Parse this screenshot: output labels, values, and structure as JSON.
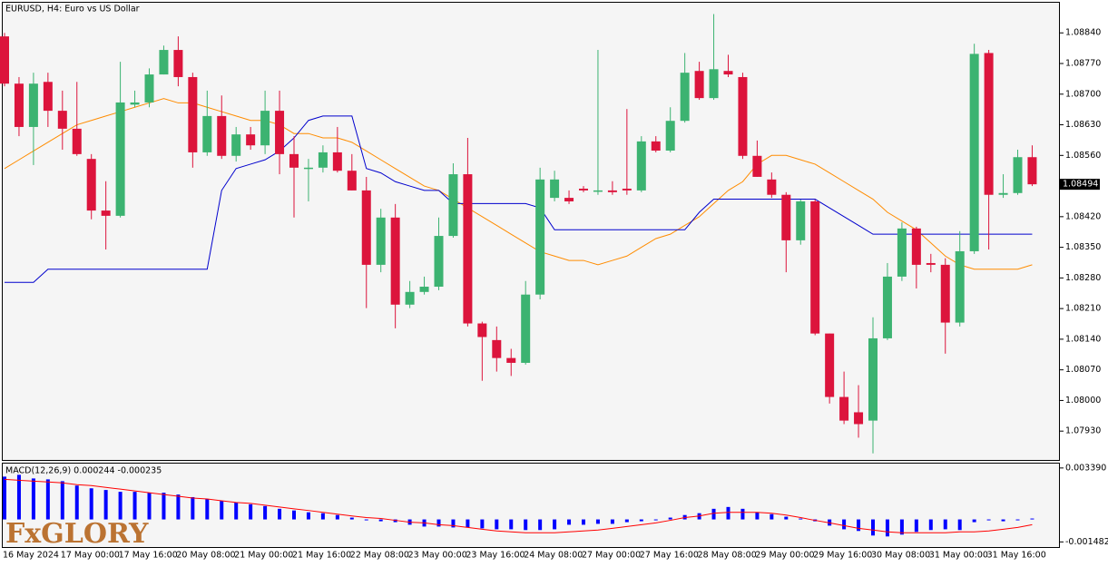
{
  "chart_data": [
    {
      "type": "candlestick",
      "title": "EURUSD, H4:  Euro vs US Dollar",
      "watermark": "FxGLORY",
      "categories": [
        "16 May 2024",
        null,
        null,
        null,
        "17 May 00:00",
        null,
        null,
        null,
        "17 May 16:00",
        null,
        null,
        null,
        "20 May 08:00",
        null,
        null,
        null,
        "21 May 00:00",
        null,
        null,
        null,
        "21 May 16:00",
        null,
        null,
        null,
        "22 May 08:00",
        null,
        null,
        null,
        "23 May 00:00",
        null,
        null,
        null,
        "23 May 16:00",
        null,
        null,
        null,
        "24 May 08:00",
        null,
        null,
        null,
        "27 May 00:00",
        null,
        null,
        null,
        "27 May 16:00",
        null,
        null,
        null,
        "28 May 08:00",
        null,
        null,
        null,
        "29 May 00:00",
        null,
        null,
        null,
        "29 May 16:00",
        null,
        null,
        null,
        "30 May 08:00",
        null,
        null,
        null,
        "31 May 00:00",
        null,
        null,
        null,
        "31 May 16:00",
        null,
        null,
        null
      ],
      "open": [
        1.08832,
        1.08724,
        1.08625,
        1.08728,
        1.08662,
        1.08621,
        1.08552,
        1.08434,
        1.08422,
        1.08676,
        1.08681,
        1.08745,
        1.08801,
        1.08739,
        1.08567,
        1.0865,
        1.08559,
        1.08608,
        1.08583,
        1.08662,
        1.08563,
        1.08532,
        1.08532,
        1.08567,
        1.08525,
        1.0848,
        1.0831,
        1.08418,
        1.08219,
        1.08248,
        1.0826,
        1.08376,
        1.08517,
        1.08176,
        1.08138,
        1.08097,
        1.08086,
        1.08242,
        1.08463,
        1.08463,
        1.08484,
        1.0848,
        1.0848,
        1.08484,
        1.0848,
        1.08592,
        1.08571,
        1.08639,
        1.08753,
        1.08691,
        1.08753,
        1.08739,
        1.08559,
        1.08505,
        1.0847,
        1.08366,
        1.08455,
        1.08153,
        1.08008,
        1.07973,
        1.07954,
        1.08142,
        1.08283,
        1.08393,
        1.08314,
        1.0831,
        1.08178,
        1.08341,
        1.08794,
        1.0847,
        1.08474,
        1.08556
      ],
      "high": [
        1.0884,
        1.08739,
        1.08749,
        1.08749,
        1.08708,
        1.08728,
        1.08563,
        1.08501,
        1.08774,
        1.08708,
        1.08759,
        1.08811,
        1.08832,
        1.08749,
        1.08708,
        1.08697,
        1.08625,
        1.08625,
        1.08708,
        1.08708,
        1.08604,
        1.08552,
        1.08583,
        1.08625,
        1.08563,
        1.08511,
        1.08438,
        1.08449,
        1.08273,
        1.08283,
        1.08418,
        1.08542,
        1.086,
        1.0818,
        1.08169,
        1.08118,
        1.08273,
        1.08532,
        1.08525,
        1.0848,
        1.0849,
        1.08801,
        1.08501,
        1.08666,
        1.08604,
        1.08604,
        1.0867,
        1.08794,
        1.08774,
        1.08883,
        1.0879,
        1.08749,
        1.08594,
        1.08521,
        1.08476,
        1.08459,
        1.08459,
        1.08153,
        1.08066,
        1.08035,
        1.0819,
        1.08314,
        1.08407,
        1.08397,
        1.08335,
        1.08325,
        1.08387,
        1.08815,
        1.08801,
        1.08517,
        1.08573,
        1.08583
      ],
      "low": [
        1.08718,
        1.08604,
        1.08538,
        1.08625,
        1.08573,
        1.08559,
        1.08414,
        1.08345,
        1.08418,
        1.0867,
        1.0867,
        1.08745,
        1.08718,
        1.08532,
        1.08559,
        1.08552,
        1.08546,
        1.08573,
        1.08563,
        1.08517,
        1.08418,
        1.08455,
        1.08521,
        1.08521,
        1.0848,
        1.08211,
        1.08293,
        1.08165,
        1.08211,
        1.08242,
        1.08252,
        1.08372,
        1.08169,
        1.08045,
        1.08066,
        1.08056,
        1.08082,
        1.08231,
        1.08455,
        1.08449,
        1.08476,
        1.0847,
        1.0847,
        1.0847,
        1.08476,
        1.08567,
        1.08567,
        1.08635,
        1.08687,
        1.08687,
        1.08739,
        1.08552,
        1.08511,
        1.08463,
        1.08293,
        1.08356,
        1.08149,
        1.07993,
        1.07946,
        1.07915,
        1.07879,
        1.08138,
        1.08273,
        1.08256,
        1.08293,
        1.08107,
        1.08169,
        1.08335,
        1.08345,
        1.08463,
        1.0847,
        1.0849
      ],
      "close": [
        1.08724,
        1.08625,
        1.08724,
        1.08662,
        1.08621,
        1.08563,
        1.08434,
        1.08422,
        1.08681,
        1.08681,
        1.08745,
        1.08801,
        1.08739,
        1.08567,
        1.0865,
        1.08559,
        1.08608,
        1.08583,
        1.08662,
        1.08563,
        1.08532,
        1.08532,
        1.08567,
        1.08525,
        1.0848,
        1.0831,
        1.08418,
        1.08219,
        1.08248,
        1.0826,
        1.08376,
        1.08517,
        1.08176,
        1.08145,
        1.08097,
        1.08086,
        1.08242,
        1.08505,
        1.08505,
        1.08455,
        1.0848,
        1.0848,
        1.08476,
        1.0848,
        1.08592,
        1.08571,
        1.08639,
        1.08749,
        1.08691,
        1.08757,
        1.08745,
        1.08559,
        1.08511,
        1.0847,
        1.08366,
        1.08455,
        1.08153,
        1.08008,
        1.07954,
        1.07946,
        1.08142,
        1.08283,
        1.08393,
        1.0831,
        1.0831,
        1.08178,
        1.08341,
        1.08792,
        1.0847,
        1.08474,
        1.08556,
        1.08494
      ],
      "up_color": "#3cb371",
      "down_color": "#dc143c",
      "overlays": [
        {
          "color": "#ff8c00",
          "values": [
            1.0853,
            1.0855,
            1.0857,
            1.0859,
            1.0861,
            1.0863,
            1.0864,
            1.0865,
            1.0866,
            1.0867,
            1.0868,
            1.0869,
            1.0868,
            1.0868,
            1.0867,
            1.0866,
            1.0865,
            1.0864,
            1.0864,
            1.0863,
            1.0861,
            1.0861,
            1.086,
            1.086,
            1.0859,
            1.0857,
            1.0855,
            1.0853,
            1.0851,
            1.0849,
            1.0848,
            1.0846,
            1.0844,
            1.0842,
            1.084,
            1.0838,
            1.0836,
            1.0834,
            1.0833,
            1.0832,
            1.0832,
            1.0831,
            1.0832,
            1.0833,
            1.0835,
            1.0837,
            1.0838,
            1.084,
            1.0842,
            1.0845,
            1.0848,
            1.085,
            1.0854,
            1.0856,
            1.0856,
            1.0855,
            1.0854,
            1.0852,
            1.085,
            1.0848,
            1.0846,
            1.0843,
            1.0841,
            1.0839,
            1.0836,
            1.0833,
            1.0831,
            1.083,
            1.083,
            1.083,
            1.083,
            1.0831
          ]
        },
        {
          "color": "#0000cd",
          "values": [
            1.0827,
            1.0827,
            1.0827,
            1.083,
            1.083,
            1.083,
            1.083,
            1.083,
            1.083,
            1.083,
            1.083,
            1.083,
            1.083,
            1.083,
            1.083,
            1.0848,
            1.0853,
            1.0854,
            1.0855,
            1.0857,
            1.086,
            1.0864,
            1.0865,
            1.0865,
            1.0865,
            1.0853,
            1.0852,
            1.085,
            1.0849,
            1.0848,
            1.0848,
            1.0845,
            1.0845,
            1.0845,
            1.0845,
            1.0845,
            1.0845,
            1.0844,
            1.0839,
            1.0839,
            1.0839,
            1.0839,
            1.0839,
            1.0839,
            1.0839,
            1.0839,
            1.0839,
            1.0839,
            1.0843,
            1.0846,
            1.0846,
            1.0846,
            1.0846,
            1.0846,
            1.0846,
            1.0846,
            1.0846,
            1.0844,
            1.0842,
            1.084,
            1.0838,
            1.0838,
            1.0838,
            1.0838,
            1.0838,
            1.0838,
            1.0838,
            1.0838,
            1.0838,
            1.0838,
            1.0838,
            1.0838
          ]
        }
      ],
      "last_price": 1.08494,
      "ylim": [
        1.07862,
        1.08911
      ],
      "yticks": [
        {
          "value": 1.0884,
          "label": "1.08840"
        },
        {
          "value": 1.0877,
          "label": "1.08770"
        },
        {
          "value": 1.087,
          "label": "1.08700"
        },
        {
          "value": 1.0863,
          "label": "1.08630"
        },
        {
          "value": 1.0856,
          "label": "1.08560"
        },
        {
          "value": 1.0842,
          "label": "1.08420"
        },
        {
          "value": 1.0835,
          "label": "1.08350"
        },
        {
          "value": 1.0828,
          "label": "1.08280"
        },
        {
          "value": 1.0821,
          "label": "1.08210"
        },
        {
          "value": 1.0814,
          "label": "1.08140"
        },
        {
          "value": 1.0807,
          "label": "1.08070"
        },
        {
          "value": 1.08,
          "label": "1.08000"
        },
        {
          "value": 1.0793,
          "label": "1.07930"
        }
      ],
      "grid": false
    },
    {
      "type": "macd",
      "title": "MACD(12,26,9) 0.000244 -0.000235",
      "color": "#0000ff",
      "values": [
        0.00282,
        0.00294,
        0.0027,
        0.00264,
        0.00252,
        0.00223,
        0.00205,
        0.00194,
        0.00182,
        0.00182,
        0.00176,
        0.00176,
        0.00164,
        0.00147,
        0.00135,
        0.00123,
        0.00112,
        0.001,
        0.00088,
        0.0007,
        0.00059,
        0.00047,
        0.00041,
        0.00029,
        0.00012,
        0,
        -0.00012,
        -0.00018,
        -0.00035,
        -0.00047,
        -0.00047,
        -0.00053,
        -0.00053,
        -0.00059,
        -0.00065,
        -0.00065,
        -0.0007,
        -0.0007,
        -0.00065,
        -0.00035,
        -0.00035,
        -0.00029,
        -0.00029,
        -0.00018,
        -0.00012,
        -6e-05,
        0.00012,
        0.00029,
        0.00041,
        0.0007,
        0.00082,
        0.0007,
        0.00047,
        0.00035,
        0.00018,
        6e-05,
        -0.00012,
        -0.00041,
        -0.00065,
        -0.00076,
        -0.00106,
        -0.00112,
        -0.001,
        -0.00082,
        -0.0007,
        -0.00065,
        -0.0007,
        -0.00018,
        0,
        -0.00012,
        -6e-05,
        6e-05
      ],
      "signal": {
        "color": "#ff0000",
        "values": [
          0.00264,
          0.00258,
          0.00252,
          0.00247,
          0.00241,
          0.00229,
          0.00223,
          0.00211,
          0.002,
          0.00188,
          0.00176,
          0.00164,
          0.00153,
          0.00141,
          0.00135,
          0.00123,
          0.00112,
          0.00106,
          0.00094,
          0.00082,
          0.0007,
          0.00059,
          0.00047,
          0.00035,
          0.00023,
          0.00012,
          6e-05,
          -6e-05,
          -0.00018,
          -0.00023,
          -0.00035,
          -0.00041,
          -0.00053,
          -0.00065,
          -0.00076,
          -0.00082,
          -0.00088,
          -0.00088,
          -0.00088,
          -0.00082,
          -0.00076,
          -0.0007,
          -0.00059,
          -0.00047,
          -0.00035,
          -0.00023,
          -6e-05,
          0.00012,
          0.00023,
          0.00041,
          0.00047,
          0.00047,
          0.00047,
          0.00041,
          0.00029,
          0.00012,
          -6e-05,
          -0.00023,
          -0.00041,
          -0.00059,
          -0.0007,
          -0.00082,
          -0.00088,
          -0.00088,
          -0.00088,
          -0.00088,
          -0.00082,
          -0.00082,
          -0.00076,
          -0.00065,
          -0.00053,
          -0.00035
        ]
      },
      "ylim": [
        -0.00182,
        0.00368
      ],
      "yticks": [
        {
          "value": 0.00339,
          "label": "0.003390"
        },
        {
          "value": -0.001482,
          "label": "-0.001482"
        }
      ]
    }
  ]
}
